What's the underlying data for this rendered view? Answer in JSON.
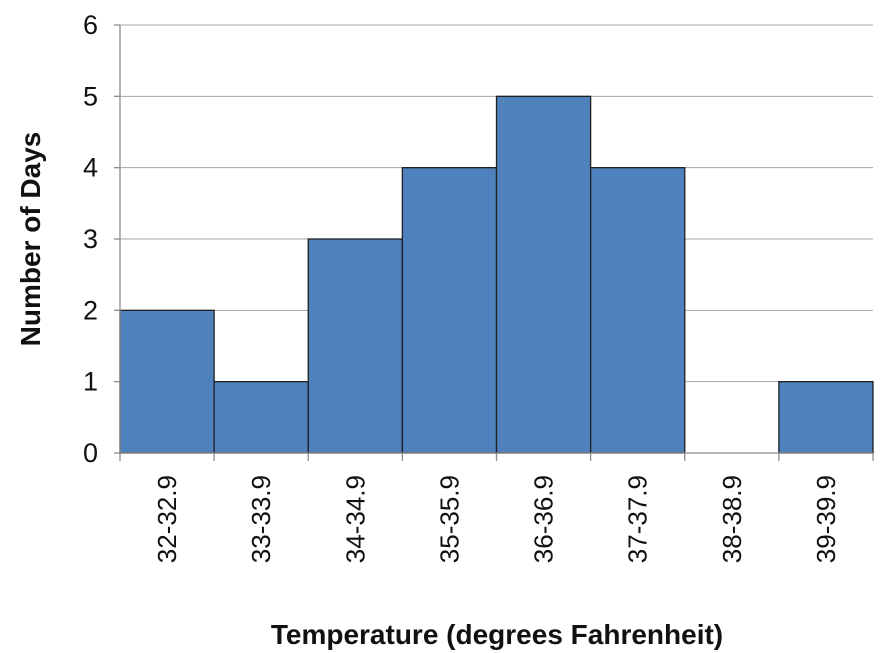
{
  "chart_data": {
    "type": "bar",
    "title": "",
    "xlabel": "Temperature (degrees Fahrenheit)",
    "ylabel": "Number of Days",
    "categories": [
      "32-32.9",
      "33-33.9",
      "34-34.9",
      "35-35.9",
      "36-36.9",
      "37-37.9",
      "38-38.9",
      "39-39.9"
    ],
    "values": [
      2,
      1,
      3,
      4,
      5,
      4,
      0,
      1
    ],
    "ylim": [
      0,
      6
    ],
    "yticks": [
      0,
      1,
      2,
      3,
      4,
      5,
      6
    ],
    "grid": true,
    "bar_gap": "none",
    "bar_color": "#4f81bd",
    "bar_edge_color": "#1f1f1f",
    "legend": "none"
  }
}
